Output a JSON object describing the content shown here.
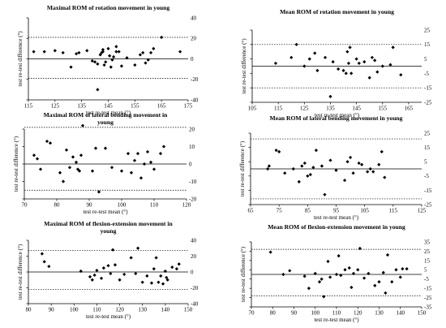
{
  "chart_data": [
    {
      "type": "scatter",
      "title": [
        "Maximal ROM of rotation movement in young"
      ],
      "xlabel": "test re-test mean (°)",
      "ylabel": "test re-test difference (°)",
      "xlim": [
        115,
        175
      ],
      "ylim": [
        -40,
        40
      ],
      "xticks": [
        115,
        125,
        135,
        145,
        155,
        165,
        175
      ],
      "yticks": [
        -40,
        -20,
        0,
        20,
        40
      ],
      "mean_line": 0,
      "limits_of_agreement": [
        -19,
        21
      ],
      "x": [
        117,
        121,
        125,
        128,
        131,
        133,
        134,
        137,
        139,
        140,
        141,
        141,
        142,
        142.5,
        143,
        143,
        143.5,
        144,
        145,
        145.5,
        146,
        146.5,
        147,
        148,
        148,
        149,
        150,
        152,
        155,
        157,
        158,
        159,
        160,
        161,
        162,
        165,
        172
      ],
      "y": [
        7,
        7,
        8,
        6,
        -8,
        5,
        6,
        8,
        -2,
        -3,
        -30,
        -5,
        4,
        6,
        7,
        9,
        -6,
        -3,
        10,
        3,
        -8,
        -1,
        2,
        7,
        12,
        7,
        -7,
        1,
        -6,
        4,
        6,
        -4,
        -1,
        6,
        10,
        21,
        7
      ]
    },
    {
      "type": "scatter",
      "title": [
        "Mean ROM of rotation movement in young"
      ],
      "xlabel": "test re-test mean (°)",
      "ylabel": "test re-test difference (°)",
      "xlim": [
        105,
        170
      ],
      "ylim": [
        -25,
        25
      ],
      "xticks": [
        105,
        115,
        125,
        135,
        145,
        155,
        165
      ],
      "yticks": [
        -25,
        -15,
        -5,
        5,
        15,
        25
      ],
      "mean_line": 0,
      "limits_of_agreement": [
        -15,
        15
      ],
      "x": [
        114,
        120,
        122,
        125,
        127,
        129,
        130,
        133,
        135,
        136,
        138,
        140,
        141,
        141.5,
        142,
        142.5,
        143,
        145,
        146,
        148,
        150,
        151,
        152,
        153,
        155,
        158,
        159,
        162
      ],
      "y": [
        2,
        6,
        15,
        0,
        5,
        9,
        -3,
        6,
        -21,
        3,
        -2,
        -3,
        -5,
        10,
        2,
        13,
        -5,
        5,
        2,
        3,
        -8,
        6,
        4,
        -4,
        0,
        1,
        13,
        -6
      ]
    },
    {
      "type": "scatter",
      "title": [
        "Maximal ROM of lateral bending movement in",
        "young"
      ],
      "xlabel": "test re-test mean (°)",
      "ylabel": "test re-test difference (°)",
      "xlim": [
        70,
        120
      ],
      "ylim": [
        -20,
        20
      ],
      "xticks": [
        70,
        80,
        90,
        100,
        110,
        120
      ],
      "yticks": [
        -20,
        -10,
        0,
        10,
        20
      ],
      "mean_line": 0,
      "limits_of_agreement": [
        -15,
        21
      ],
      "x": [
        73,
        74,
        75,
        77,
        78,
        81,
        82,
        83,
        84,
        85,
        86,
        86.5,
        87,
        87.5,
        88,
        91,
        92,
        93,
        95,
        97,
        100,
        102,
        103,
        104,
        105,
        106,
        107,
        108,
        109,
        110,
        112,
        113
      ],
      "y": [
        5,
        3,
        -3,
        13,
        12,
        -5,
        -10,
        8,
        -2,
        4,
        1,
        -3,
        -4,
        5,
        22,
        -4,
        9,
        -16,
        9,
        -2,
        -4,
        6,
        -5,
        2,
        6,
        -8,
        0,
        7,
        1,
        -3,
        6,
        10
      ]
    },
    {
      "type": "scatter",
      "title": [
        "Mean ROM of lateral bending movement in young"
      ],
      "xlabel": "test re-test mean (°)",
      "ylabel": "test re-test difference (°)",
      "xlim": [
        65,
        125
      ],
      "ylim": [
        -25,
        25
      ],
      "xticks": [
        65,
        75,
        85,
        95,
        105,
        115,
        125
      ],
      "yticks": [
        -25,
        -15,
        -5,
        5,
        15,
        25
      ],
      "mean_line": 0,
      "limits_of_agreement": [
        -21,
        21
      ],
      "x": [
        71,
        71.5,
        74,
        75,
        77,
        80,
        82,
        83,
        84,
        85,
        86,
        87,
        88,
        90,
        91,
        93,
        95,
        98,
        99,
        100,
        101,
        103,
        104,
        106,
        107,
        108,
        110,
        111,
        112
      ],
      "y": [
        0,
        2,
        13,
        12,
        -3,
        0,
        -9,
        2,
        4,
        -5,
        -4,
        1,
        13,
        2,
        -18,
        6,
        -1,
        -8,
        5,
        8,
        -3,
        4,
        3,
        -2,
        0,
        -2,
        3,
        12,
        -6
      ]
    },
    {
      "type": "scatter",
      "title": [
        "Maximal ROM of flexion-extension movement in",
        "young"
      ],
      "xlabel": "test re-test mean (°)",
      "ylabel": "test re-test difference (°)",
      "xlim": [
        80,
        150
      ],
      "ylim": [
        -40,
        40
      ],
      "xticks": [
        80,
        90,
        100,
        110,
        120,
        130,
        140,
        150
      ],
      "yticks": [
        -40,
        -20,
        0,
        20,
        40
      ],
      "mean_line": 0,
      "limits_of_agreement": [
        -22,
        27
      ],
      "x": [
        86,
        87,
        89,
        103,
        107,
        108,
        109,
        110,
        112,
        113,
        115,
        116,
        117,
        118,
        120,
        122,
        125,
        127,
        128,
        130,
        132,
        134,
        135,
        136,
        137,
        138,
        139,
        140,
        140.5,
        141,
        143,
        145,
        146
      ],
      "y": [
        23,
        13,
        7,
        1,
        -6,
        -10,
        -4,
        2,
        -8,
        5,
        8,
        -2,
        28,
        9,
        -10,
        -3,
        18,
        -2,
        30,
        -13,
        -5,
        -14,
        4,
        18,
        -13,
        -5,
        -15,
        1,
        -7,
        -10,
        6,
        4,
        10
      ]
    },
    {
      "type": "scatter",
      "title": [
        "Mean ROM of flexion-extension movement in young"
      ],
      "xlabel": "test re-test mean (°)",
      "ylabel": "test re-test difference (°)",
      "xlim": [
        70,
        150
      ],
      "ylim": [
        -35,
        35
      ],
      "xticks": [
        70,
        80,
        90,
        100,
        110,
        120,
        130,
        140,
        150
      ],
      "yticks": [
        -35,
        -25,
        -15,
        -5,
        5,
        15,
        25,
        35
      ],
      "mean_line": 0,
      "limits_of_agreement": [
        -23,
        27
      ],
      "x": [
        79,
        85,
        88,
        95,
        97,
        100,
        102,
        103,
        104,
        106,
        107,
        110,
        111,
        112,
        114,
        116,
        117,
        118,
        120,
        121,
        123,
        125,
        128,
        130,
        132,
        133,
        134,
        136,
        138,
        140,
        141,
        143
      ],
      "y": [
        24,
        0,
        4,
        -2,
        -15,
        1,
        -8,
        -5,
        -24,
        14,
        -3,
        0,
        20,
        -1,
        5,
        7,
        -14,
        1,
        5,
        28,
        -4,
        1,
        -12,
        -8,
        2,
        -20,
        21,
        -8,
        5,
        -3,
        6,
        6
      ]
    }
  ]
}
